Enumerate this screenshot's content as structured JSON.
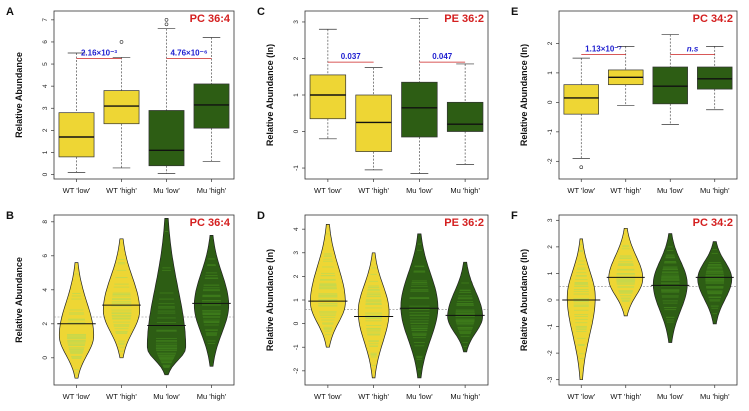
{
  "colors": {
    "yellow": "#eed634",
    "green": "#2d5d14",
    "title_red": "#d42020",
    "annotation_blue": "#2020d0",
    "bracket_red": "#cc2020",
    "stripe_yellow": "#c8d84a",
    "stripe_green": "#3d7a1a"
  },
  "chart_data": [
    {
      "panel": "A",
      "type": "box",
      "title": "PC 36:4",
      "ylabel": "Relative Abundance",
      "ylim": [
        -0.2,
        7.4
      ],
      "yticks": [
        0,
        1,
        2,
        3,
        4,
        5,
        6,
        7
      ],
      "categories": [
        "WT 'low'",
        "WT 'high'",
        "Mu 'low'",
        "Mu 'high'"
      ],
      "boxes": [
        {
          "min": 0.1,
          "q1": 0.8,
          "median": 1.7,
          "q3": 2.8,
          "max": 5.5,
          "outliers": [],
          "color": "yellow"
        },
        {
          "min": 0.3,
          "q1": 2.3,
          "median": 3.1,
          "q3": 3.8,
          "max": 5.3,
          "outliers": [
            6.0
          ],
          "color": "yellow"
        },
        {
          "min": 0.05,
          "q1": 0.4,
          "median": 1.1,
          "q3": 2.9,
          "max": 6.6,
          "outliers": [
            6.8,
            7.0
          ],
          "color": "green"
        },
        {
          "min": 0.6,
          "q1": 2.1,
          "median": 3.15,
          "q3": 4.1,
          "max": 6.2,
          "outliers": [],
          "color": "green"
        }
      ],
      "annotations": [
        {
          "between": [
            0,
            1
          ],
          "y": 5.25,
          "text": "2.16×10⁻³"
        },
        {
          "between": [
            2,
            3
          ],
          "y": 5.25,
          "text": "4.76×10⁻⁶"
        }
      ]
    },
    {
      "panel": "C",
      "type": "box",
      "title": "PE 36:2",
      "ylabel": "Relative Abundance (ln)",
      "ylim": [
        -1.3,
        3.3
      ],
      "yticks": [
        -1,
        0,
        1,
        2,
        3
      ],
      "categories": [
        "WT 'low'",
        "WT 'high'",
        "Mu 'low'",
        "Mu 'high'"
      ],
      "boxes": [
        {
          "min": -0.2,
          "q1": 0.35,
          "median": 1.0,
          "q3": 1.55,
          "max": 2.8,
          "outliers": [],
          "color": "yellow"
        },
        {
          "min": -1.05,
          "q1": -0.55,
          "median": 0.25,
          "q3": 1.0,
          "max": 1.75,
          "outliers": [],
          "color": "yellow"
        },
        {
          "min": -1.15,
          "q1": -0.15,
          "median": 0.65,
          "q3": 1.35,
          "max": 3.1,
          "outliers": [],
          "color": "green"
        },
        {
          "min": -0.9,
          "q1": 0.0,
          "median": 0.2,
          "q3": 0.8,
          "max": 1.85,
          "outliers": [],
          "color": "green"
        }
      ],
      "annotations": [
        {
          "between": [
            0,
            1
          ],
          "y": 1.9,
          "text": "0.037"
        },
        {
          "between": [
            2,
            3
          ],
          "y": 1.9,
          "text": "0.047"
        }
      ]
    },
    {
      "panel": "E",
      "type": "box",
      "title": "PC 34:2",
      "ylabel": "Relative Abundance (ln)",
      "ylim": [
        -2.6,
        3.1
      ],
      "yticks": [
        -2,
        -1,
        0,
        1,
        2
      ],
      "categories": [
        "WT 'low'",
        "WT 'high'",
        "Mu 'low'",
        "Mu 'high'"
      ],
      "boxes": [
        {
          "min": -1.9,
          "q1": -0.4,
          "median": 0.15,
          "q3": 0.6,
          "max": 1.5,
          "outliers": [
            -2.2
          ],
          "color": "yellow"
        },
        {
          "min": -0.1,
          "q1": 0.6,
          "median": 0.85,
          "q3": 1.1,
          "max": 1.9,
          "outliers": [],
          "color": "yellow"
        },
        {
          "min": -0.75,
          "q1": -0.05,
          "median": 0.55,
          "q3": 1.2,
          "max": 2.3,
          "outliers": [],
          "color": "green"
        },
        {
          "min": -0.25,
          "q1": 0.45,
          "median": 0.8,
          "q3": 1.2,
          "max": 1.9,
          "outliers": [],
          "color": "green"
        }
      ],
      "annotations": [
        {
          "between": [
            0,
            1
          ],
          "y": 1.62,
          "text": "1.13×10⁻⁷"
        },
        {
          "between": [
            2,
            3
          ],
          "y": 1.62,
          "text": "n.s"
        }
      ]
    },
    {
      "panel": "B",
      "type": "violin",
      "title": "PC 36:4",
      "ylabel": "Relative Abundance",
      "ylim": [
        -1.6,
        8.4
      ],
      "yticks": [
        0,
        2,
        4,
        6,
        8
      ],
      "overall_mean": 2.4,
      "categories": [
        "WT 'low'",
        "WT 'high'",
        "Mu 'low'",
        "Mu 'high'"
      ],
      "violins": [
        {
          "min": -1.2,
          "max": 5.6,
          "mode": 1.3,
          "mean": 2.0,
          "width": 0.85,
          "color": "yellow"
        },
        {
          "min": 0.0,
          "max": 7.0,
          "mode": 2.8,
          "mean": 3.1,
          "width": 0.9,
          "color": "yellow"
        },
        {
          "min": -1.0,
          "max": 8.2,
          "mode": 0.6,
          "mean": 1.9,
          "width": 0.95,
          "color": "green"
        },
        {
          "min": -0.5,
          "max": 7.2,
          "mode": 3.1,
          "mean": 3.2,
          "width": 0.85,
          "color": "green"
        }
      ]
    },
    {
      "panel": "D",
      "type": "violin",
      "title": "PE 36:2",
      "ylabel": "Relative Abundance (ln)",
      "ylim": [
        -2.6,
        4.6
      ],
      "yticks": [
        -2,
        -1,
        0,
        1,
        2,
        3,
        4
      ],
      "overall_mean": 0.6,
      "categories": [
        "WT 'low'",
        "WT 'high'",
        "Mu 'low'",
        "Mu 'high'"
      ],
      "violins": [
        {
          "min": -1.0,
          "max": 4.2,
          "mode": 0.9,
          "mean": 0.95,
          "width": 0.85,
          "color": "yellow"
        },
        {
          "min": -2.3,
          "max": 3.0,
          "mode": 0.5,
          "mean": 0.3,
          "width": 0.75,
          "color": "yellow"
        },
        {
          "min": -2.3,
          "max": 3.8,
          "mode": 0.7,
          "mean": 0.65,
          "width": 0.9,
          "color": "green"
        },
        {
          "min": -1.2,
          "max": 2.6,
          "mode": 0.3,
          "mean": 0.35,
          "width": 0.85,
          "color": "green"
        }
      ]
    },
    {
      "panel": "F",
      "type": "violin",
      "title": "PC 34:2",
      "ylabel": "Relative Abundance (ln)",
      "ylim": [
        -3.2,
        3.2
      ],
      "yticks": [
        -3,
        -2,
        -1,
        0,
        1,
        2,
        3
      ],
      "overall_mean": 0.5,
      "categories": [
        "WT 'low'",
        "WT 'high'",
        "Mu 'low'",
        "Mu 'high'"
      ],
      "violins": [
        {
          "min": -3.0,
          "max": 2.3,
          "mode": 0.1,
          "mean": 0.0,
          "width": 0.7,
          "color": "yellow"
        },
        {
          "min": -0.6,
          "max": 2.7,
          "mode": 0.8,
          "mean": 0.85,
          "width": 0.85,
          "color": "yellow"
        },
        {
          "min": -1.6,
          "max": 2.5,
          "mode": 0.6,
          "mean": 0.55,
          "width": 0.85,
          "color": "green"
        },
        {
          "min": -0.9,
          "max": 2.2,
          "mode": 0.8,
          "mean": 0.85,
          "width": 0.85,
          "color": "green"
        }
      ]
    }
  ]
}
